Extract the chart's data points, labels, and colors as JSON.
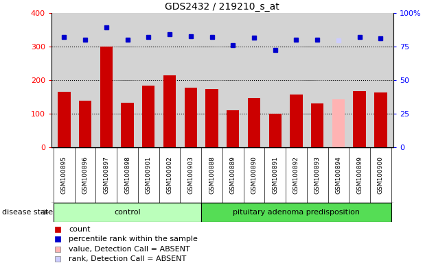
{
  "title": "GDS2432 / 219210_s_at",
  "samples": [
    "GSM100895",
    "GSM100896",
    "GSM100897",
    "GSM100898",
    "GSM100901",
    "GSM100902",
    "GSM100903",
    "GSM100888",
    "GSM100889",
    "GSM100890",
    "GSM100891",
    "GSM100892",
    "GSM100893",
    "GSM100894",
    "GSM100899",
    "GSM100900"
  ],
  "bar_values": [
    165,
    138,
    300,
    133,
    183,
    215,
    178,
    173,
    110,
    148,
    100,
    158,
    130,
    143,
    168,
    163
  ],
  "bar_colors": [
    "#cc0000",
    "#cc0000",
    "#cc0000",
    "#cc0000",
    "#cc0000",
    "#cc0000",
    "#cc0000",
    "#cc0000",
    "#cc0000",
    "#cc0000",
    "#cc0000",
    "#cc0000",
    "#cc0000",
    "#ffb3b3",
    "#cc0000",
    "#cc0000"
  ],
  "rank_values": [
    328,
    320,
    357,
    320,
    328,
    338,
    330,
    328,
    305,
    326,
    290,
    320,
    320,
    318,
    328,
    324
  ],
  "rank_colors": [
    "#0000cc",
    "#0000cc",
    "#0000cc",
    "#0000cc",
    "#0000cc",
    "#0000cc",
    "#0000cc",
    "#0000cc",
    "#0000cc",
    "#0000cc",
    "#0000cc",
    "#0000cc",
    "#0000cc",
    "#ccccff",
    "#0000cc",
    "#0000cc"
  ],
  "groups": [
    {
      "label": "control",
      "start": 0,
      "end": 7,
      "color": "#bbffbb"
    },
    {
      "label": "pituitary adenoma predisposition",
      "start": 7,
      "end": 16,
      "color": "#55dd55"
    }
  ],
  "disease_state_label": "disease state",
  "ylim_left": [
    0,
    400
  ],
  "ylim_right": [
    0,
    100
  ],
  "yticks_left": [
    0,
    100,
    200,
    300,
    400
  ],
  "yticks_right": [
    0,
    25,
    50,
    75,
    100
  ],
  "ytick_labels_right": [
    "0",
    "25",
    "50",
    "75",
    "100%"
  ],
  "hlines": [
    100,
    200,
    300
  ],
  "legend_items": [
    {
      "label": "count",
      "color": "#cc0000"
    },
    {
      "label": "percentile rank within the sample",
      "color": "#0000cc"
    },
    {
      "label": "value, Detection Call = ABSENT",
      "color": "#ffb3b3"
    },
    {
      "label": "rank, Detection Call = ABSENT",
      "color": "#ccccff"
    }
  ],
  "background_color": "#d3d3d3",
  "bar_width": 0.6,
  "n_control": 7,
  "n_total": 16
}
